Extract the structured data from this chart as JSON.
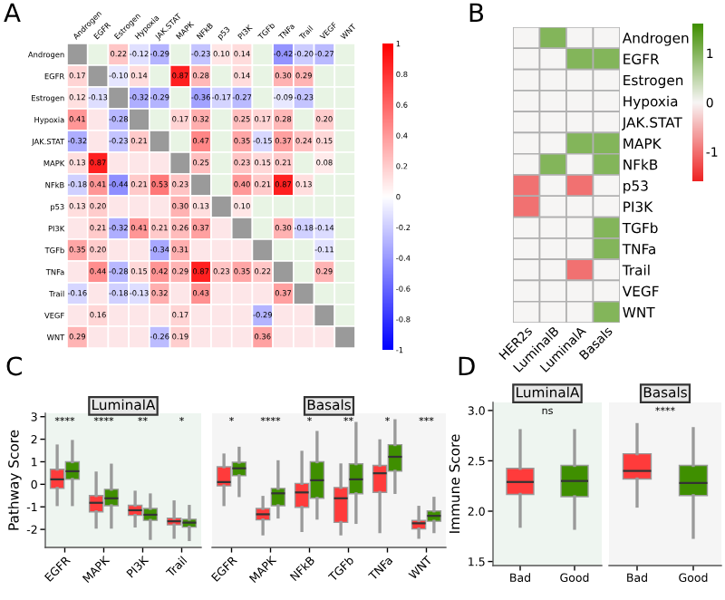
{
  "chart_data": [
    {
      "type": "heatmap",
      "title": "A",
      "categories": [
        "Androgen",
        "EGFR",
        "Estrogen",
        "Hypoxia",
        "JAK.STAT",
        "MAPK",
        "NFkB",
        "p53",
        "PI3K",
        "TGFb",
        "TNFa",
        "Trail",
        "VEGF",
        "WNT"
      ],
      "y_categories": [
        "Androgen",
        "EGFR",
        "Estrogen",
        "Hypoxia",
        "JAK.STAT",
        "MAPK",
        "NFkB",
        "p53",
        "PI3K",
        "TGFb",
        "TNFa",
        "Trail",
        "VEGF",
        "WNT"
      ],
      "cells": [
        [
          null,
          null,
          0.22,
          -0.12,
          -0.29,
          null,
          -0.23,
          0.1,
          0.14,
          null,
          -0.42,
          -0.2,
          -0.27,
          null
        ],
        [
          0.17,
          null,
          -0.1,
          0.14,
          null,
          0.87,
          0.28,
          null,
          0.14,
          null,
          0.3,
          0.29,
          null,
          null
        ],
        [
          0.12,
          -0.13,
          null,
          -0.32,
          -0.29,
          null,
          -0.36,
          -0.17,
          -0.27,
          null,
          -0.09,
          -0.23,
          null,
          null
        ],
        [
          0.41,
          null,
          -0.28,
          null,
          null,
          0.17,
          0.32,
          null,
          0.25,
          0.17,
          0.28,
          null,
          0.2,
          null
        ],
        [
          -0.32,
          null,
          -0.23,
          0.21,
          null,
          null,
          0.47,
          null,
          0.35,
          -0.15,
          0.37,
          0.24,
          0.15,
          null
        ],
        [
          0.13,
          0.87,
          null,
          null,
          null,
          null,
          0.25,
          null,
          0.23,
          0.15,
          0.21,
          null,
          0.08,
          null
        ],
        [
          -0.18,
          0.41,
          -0.44,
          0.21,
          0.53,
          0.23,
          null,
          null,
          0.4,
          0.21,
          0.87,
          0.13,
          null,
          null
        ],
        [
          0.13,
          0.2,
          null,
          null,
          null,
          0.3,
          0.13,
          null,
          0.1,
          null,
          null,
          null,
          null,
          null
        ],
        [
          null,
          0.21,
          -0.32,
          0.41,
          0.21,
          0.26,
          0.37,
          null,
          null,
          null,
          0.3,
          -0.18,
          -0.14,
          null
        ],
        [
          0.35,
          0.2,
          null,
          null,
          -0.34,
          0.31,
          null,
          null,
          null,
          null,
          null,
          null,
          -0.11,
          null
        ],
        [
          null,
          0.44,
          -0.28,
          0.15,
          0.42,
          0.29,
          0.87,
          0.23,
          0.35,
          0.22,
          null,
          null,
          0.29,
          null
        ],
        [
          -0.16,
          null,
          -0.18,
          -0.13,
          0.32,
          null,
          0.43,
          null,
          null,
          null,
          0.37,
          null,
          null,
          null
        ],
        [
          null,
          0.16,
          null,
          null,
          null,
          0.17,
          null,
          null,
          null,
          -0.29,
          null,
          null,
          null,
          null
        ],
        [
          0.29,
          null,
          null,
          null,
          -0.26,
          0.19,
          null,
          null,
          null,
          0.36,
          null,
          null,
          null,
          null
        ]
      ],
      "cell_labels": [
        [
          null,
          null,
          "0.22",
          "-0.12",
          "-0.29",
          null,
          "-0.23",
          "0.10",
          "0.14",
          null,
          "-0.42",
          "-0.20",
          "-0.27",
          null
        ],
        [
          "0.17",
          null,
          "-0.10",
          "0.14",
          null,
          "0.87",
          "0.28",
          null,
          "0.14",
          null,
          "0.30",
          "0.29",
          null,
          null
        ],
        [
          "0.12",
          "-0.13",
          null,
          "-0.32",
          "-0.29",
          null,
          "-0.36",
          "-0.17",
          "-0.27",
          null,
          "-0.09",
          "-0.23",
          null,
          null
        ],
        [
          "0.41",
          null,
          "-0.28",
          null,
          null,
          "0.17",
          "0.32",
          null,
          "0.25",
          "0.17",
          "0.28",
          null,
          "0.20",
          null
        ],
        [
          "-0.32",
          null,
          "-0.23",
          "0.21",
          null,
          null,
          "0.47",
          null,
          "0.35",
          "-0.15",
          "0.37",
          "0.24",
          "0.15",
          null
        ],
        [
          "0.13",
          "0.87",
          null,
          null,
          null,
          null,
          "0.25",
          null,
          "0.23",
          "0.15",
          "0.21",
          null,
          "0.08",
          null
        ],
        [
          "-0.18",
          "0.41",
          "-0.44",
          "0.21",
          "0.53",
          "0.23",
          null,
          null,
          "0.40",
          "0.21",
          "0.87",
          "0.13",
          null,
          null
        ],
        [
          "0.13",
          "0.20",
          null,
          null,
          null,
          "0.30",
          "0.13",
          null,
          "0.10",
          null,
          null,
          null,
          null,
          null
        ],
        [
          null,
          "0.21",
          "-0.32",
          "0.41",
          "0.21",
          "0.26",
          "0.37",
          null,
          null,
          null,
          "0.30",
          "-0.18",
          "-0.14",
          null
        ],
        [
          "0.35",
          "0.20",
          null,
          null,
          "-0.34",
          "0.31",
          null,
          null,
          null,
          null,
          null,
          null,
          "-0.11",
          null
        ],
        [
          null,
          "0.44",
          "-0.28",
          "0.15",
          "0.42",
          "0.29",
          "0.87",
          "0.23",
          "0.35",
          "0.22",
          null,
          null,
          "0.29",
          null
        ],
        [
          "-0.16",
          null,
          "-0.18",
          "-0.13",
          "0.32",
          null,
          "0.43",
          null,
          null,
          null,
          "0.37",
          null,
          null,
          null
        ],
        [
          null,
          "0.16",
          null,
          null,
          null,
          "0.17",
          null,
          null,
          null,
          "-0.29",
          null,
          null,
          null,
          null
        ],
        [
          "0.29",
          null,
          null,
          null,
          "-0.26",
          "0.19",
          null,
          null,
          null,
          "0.36",
          null,
          null,
          null,
          null
        ]
      ],
      "clim": [
        -1,
        1
      ],
      "cticks": [
        1,
        0.8,
        0.6,
        0.4,
        0.2,
        0,
        -0.2,
        -0.4,
        -0.6,
        -0.8,
        -1
      ]
    },
    {
      "type": "heatmap",
      "title": "B",
      "categories": [
        "HER2s",
        "LuminalB",
        "LuminalA",
        "Basals"
      ],
      "y_categories": [
        "Androgen",
        "EGFR",
        "Estrogen",
        "Hypoxia",
        "JAK.STAT",
        "MAPK",
        "NFkB",
        "p53",
        "PI3K",
        "TGFb",
        "TNFa",
        "Trail",
        "VEGF",
        "WNT"
      ],
      "cells": [
        [
          0,
          1,
          0,
          0
        ],
        [
          0,
          0,
          1,
          1
        ],
        [
          0,
          0,
          0,
          0
        ],
        [
          0,
          0,
          0,
          0
        ],
        [
          0,
          0,
          0,
          0
        ],
        [
          0,
          0,
          1,
          1
        ],
        [
          0,
          1,
          0,
          1
        ],
        [
          -1,
          0,
          -1,
          0
        ],
        [
          -1,
          0,
          0,
          0
        ],
        [
          0,
          0,
          0,
          1
        ],
        [
          0,
          0,
          0,
          1
        ],
        [
          0,
          0,
          -1,
          0
        ],
        [
          0,
          0,
          0,
          0
        ],
        [
          0,
          0,
          0,
          1
        ]
      ],
      "clim": [
        -1.6,
        1.6
      ],
      "cticks": [
        1,
        0,
        -1
      ]
    },
    {
      "type": "box",
      "title": "C",
      "subtitle": "LuminalA",
      "ylabel": "Pathway Score",
      "categories": [
        "EGFR",
        "MAPK",
        "PI3K",
        "Trail"
      ],
      "series": [
        {
          "color": "#ff3b3b",
          "boxes": [
            {
              "low": -0.9,
              "q1": -0.18,
              "median": 0.22,
              "q3": 0.67,
              "high": 1.7
            },
            {
              "low": -1.9,
              "q1": -1.22,
              "median": -0.82,
              "q3": -0.5,
              "high": 0.5
            },
            {
              "low": -1.85,
              "q1": -1.38,
              "median": -1.15,
              "q3": -0.93,
              "high": -0.35
            },
            {
              "low": -2.35,
              "q1": -1.8,
              "median": -1.64,
              "q3": -1.5,
              "high": -0.78
            }
          ]
        },
        {
          "color": "#3f8f00",
          "boxes": [
            {
              "low": -0.9,
              "q1": 0.22,
              "median": 0.58,
              "q3": 1.0,
              "high": 1.9
            },
            {
              "low": -1.9,
              "q1": -0.95,
              "median": -0.62,
              "q3": -0.22,
              "high": 0.85
            },
            {
              "low": -2.4,
              "q1": -1.6,
              "median": -1.35,
              "q3": -1.07,
              "high": -0.47
            },
            {
              "low": -2.45,
              "q1": -1.9,
              "median": -1.7,
              "q3": -1.55,
              "high": -0.98
            }
          ]
        }
      ],
      "ylim": [
        -2.8,
        3.15
      ],
      "yticks": [
        -2,
        -1,
        0,
        1,
        2,
        3
      ],
      "annotations": [
        "****",
        "****",
        "**",
        "*"
      ]
    },
    {
      "type": "box",
      "subtitle": "Basals",
      "categories": [
        "EGFR",
        "MAPK",
        "NFkB",
        "TGFb",
        "TNFa",
        "WNT"
      ],
      "series": [
        {
          "color": "#ff3b3b",
          "boxes": [
            {
              "low": -0.9,
              "q1": -0.07,
              "median": 0.1,
              "q3": 0.78,
              "high": 1.3
            },
            {
              "low": -2.2,
              "q1": -1.58,
              "median": -1.33,
              "q3": -1.07,
              "high": -0.58
            },
            {
              "low": -2.05,
              "q1": -1.02,
              "median": -0.36,
              "q3": 0.04,
              "high": 1.42
            },
            {
              "low": -2.2,
              "q1": -1.69,
              "median": -0.62,
              "q3": -0.14,
              "high": 0.86
            },
            {
              "low": -2.1,
              "q1": -0.36,
              "median": 0.49,
              "q3": 0.84,
              "high": 1.93
            },
            {
              "low": -2.35,
              "q1": -1.98,
              "median": -1.73,
              "q3": -1.6,
              "high": -1.02
            }
          ]
        },
        {
          "color": "#3f8f00",
          "boxes": [
            {
              "low": -0.5,
              "q1": 0.38,
              "median": 0.71,
              "q3": 0.98,
              "high": 1.6
            },
            {
              "low": -1.45,
              "q1": -0.95,
              "median": -0.4,
              "q3": -0.18,
              "high": 1.0
            },
            {
              "low": -1.5,
              "q1": -0.62,
              "median": 0.18,
              "q3": 1.0,
              "high": 2.3
            },
            {
              "low": -1.69,
              "q1": -0.42,
              "median": 0.22,
              "q3": 0.91,
              "high": 2.7
            },
            {
              "low": -0.36,
              "q1": 0.58,
              "median": 1.22,
              "q3": 1.76,
              "high": 2.82
            },
            {
              "low": -2.1,
              "q1": -1.64,
              "median": -1.4,
              "q3": -1.18,
              "high": -0.62
            }
          ]
        }
      ],
      "ylim": [
        -2.8,
        3.15
      ],
      "tick_labels": "x",
      "annotations": [
        "*",
        "****",
        "*",
        "**",
        "*",
        "***"
      ]
    },
    {
      "type": "box",
      "title": "D",
      "subtitle": "LuminalA",
      "ylabel": "Immune Score",
      "categories": [
        "Bad",
        "Good"
      ],
      "series": [
        {
          "colors": [
            "#ff3b3b",
            "#3f8f00"
          ],
          "boxes": [
            {
              "low": 1.85,
              "q1": 2.167,
              "median": 2.29,
              "q3": 2.425,
              "high": 2.8
            },
            {
              "low": 1.83,
              "q1": 2.144,
              "median": 2.3,
              "q3": 2.454,
              "high": 2.8
            }
          ]
        }
      ],
      "ylim": [
        1.46,
        3.08
      ],
      "yticks": [
        1.5,
        {
          "value": 2,
          "label": "2.0"
        },
        2.5,
        {
          "value": 3,
          "label": "3.0"
        }
      ],
      "annotations": [
        "ns"
      ]
    },
    {
      "type": "box",
      "subtitle": "Basals",
      "categories": [
        "Bad",
        "Good"
      ],
      "series": [
        {
          "colors": [
            "#ff3b3b",
            "#3f8f00"
          ],
          "boxes": [
            {
              "low": 2.05,
              "q1": 2.32,
              "median": 2.4,
              "q3": 2.57,
              "high": 2.86
            },
            {
              "low": 1.74,
              "q1": 2.155,
              "median": 2.28,
              "q3": 2.454,
              "high": 2.82
            }
          ]
        }
      ],
      "ylim": [
        1.46,
        3.08
      ],
      "tick_labels": "x",
      "annotations": [
        "****"
      ]
    }
  ]
}
